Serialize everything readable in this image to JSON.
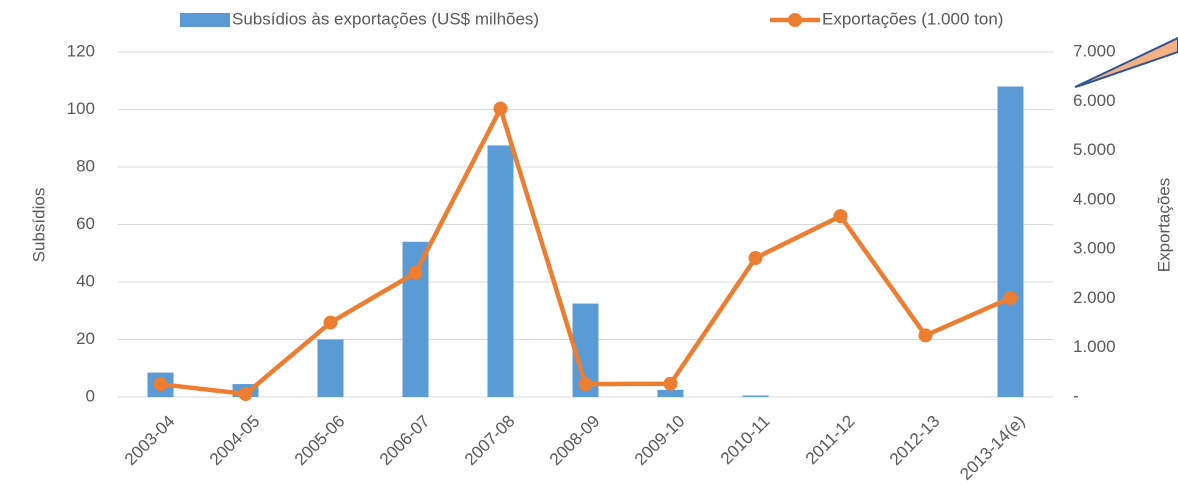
{
  "chart_data": {
    "type": "bar_line",
    "categories": [
      "2003-04",
      "2004-05",
      "2005-06",
      "2006-07",
      "2007-08",
      "2008-09",
      "2009-10",
      "2010-11",
      "2011-12",
      "2012-13",
      "2013-14(e)"
    ],
    "series": [
      {
        "name": "Subsídios às exportações (US$ milhões)",
        "type": "bar",
        "color": "#5b9bd5",
        "axis": "y",
        "values": [
          8.5,
          4.5,
          20,
          54,
          87.5,
          32.5,
          2.5,
          0.5,
          0,
          0,
          108
        ]
      },
      {
        "name": "Exportações (1.000 ton)",
        "type": "line",
        "color": "#ed7d31",
        "axis": "y2",
        "values": [
          260,
          60,
          1510,
          2520,
          5850,
          260,
          270,
          2820,
          3670,
          1250,
          2010
        ]
      }
    ],
    "ylabel": "Subsídios",
    "y2label": "Exportações",
    "ylim": [
      0,
      120
    ],
    "yticks": [
      0,
      20,
      40,
      60,
      80,
      100,
      120
    ],
    "y2lim": [
      0,
      7000
    ],
    "y2ticks": [
      {
        "value": 0,
        "label": "-"
      },
      {
        "value": 1000,
        "label": "1.000"
      },
      {
        "value": 2000,
        "label": "2.000"
      },
      {
        "value": 3000,
        "label": "3.000"
      },
      {
        "value": 4000,
        "label": "4.000"
      },
      {
        "value": 5000,
        "label": "5.000"
      },
      {
        "value": 6000,
        "label": "6.000"
      },
      {
        "value": 7000,
        "label": "7.000"
      }
    ],
    "grid": true,
    "legend": "top"
  }
}
